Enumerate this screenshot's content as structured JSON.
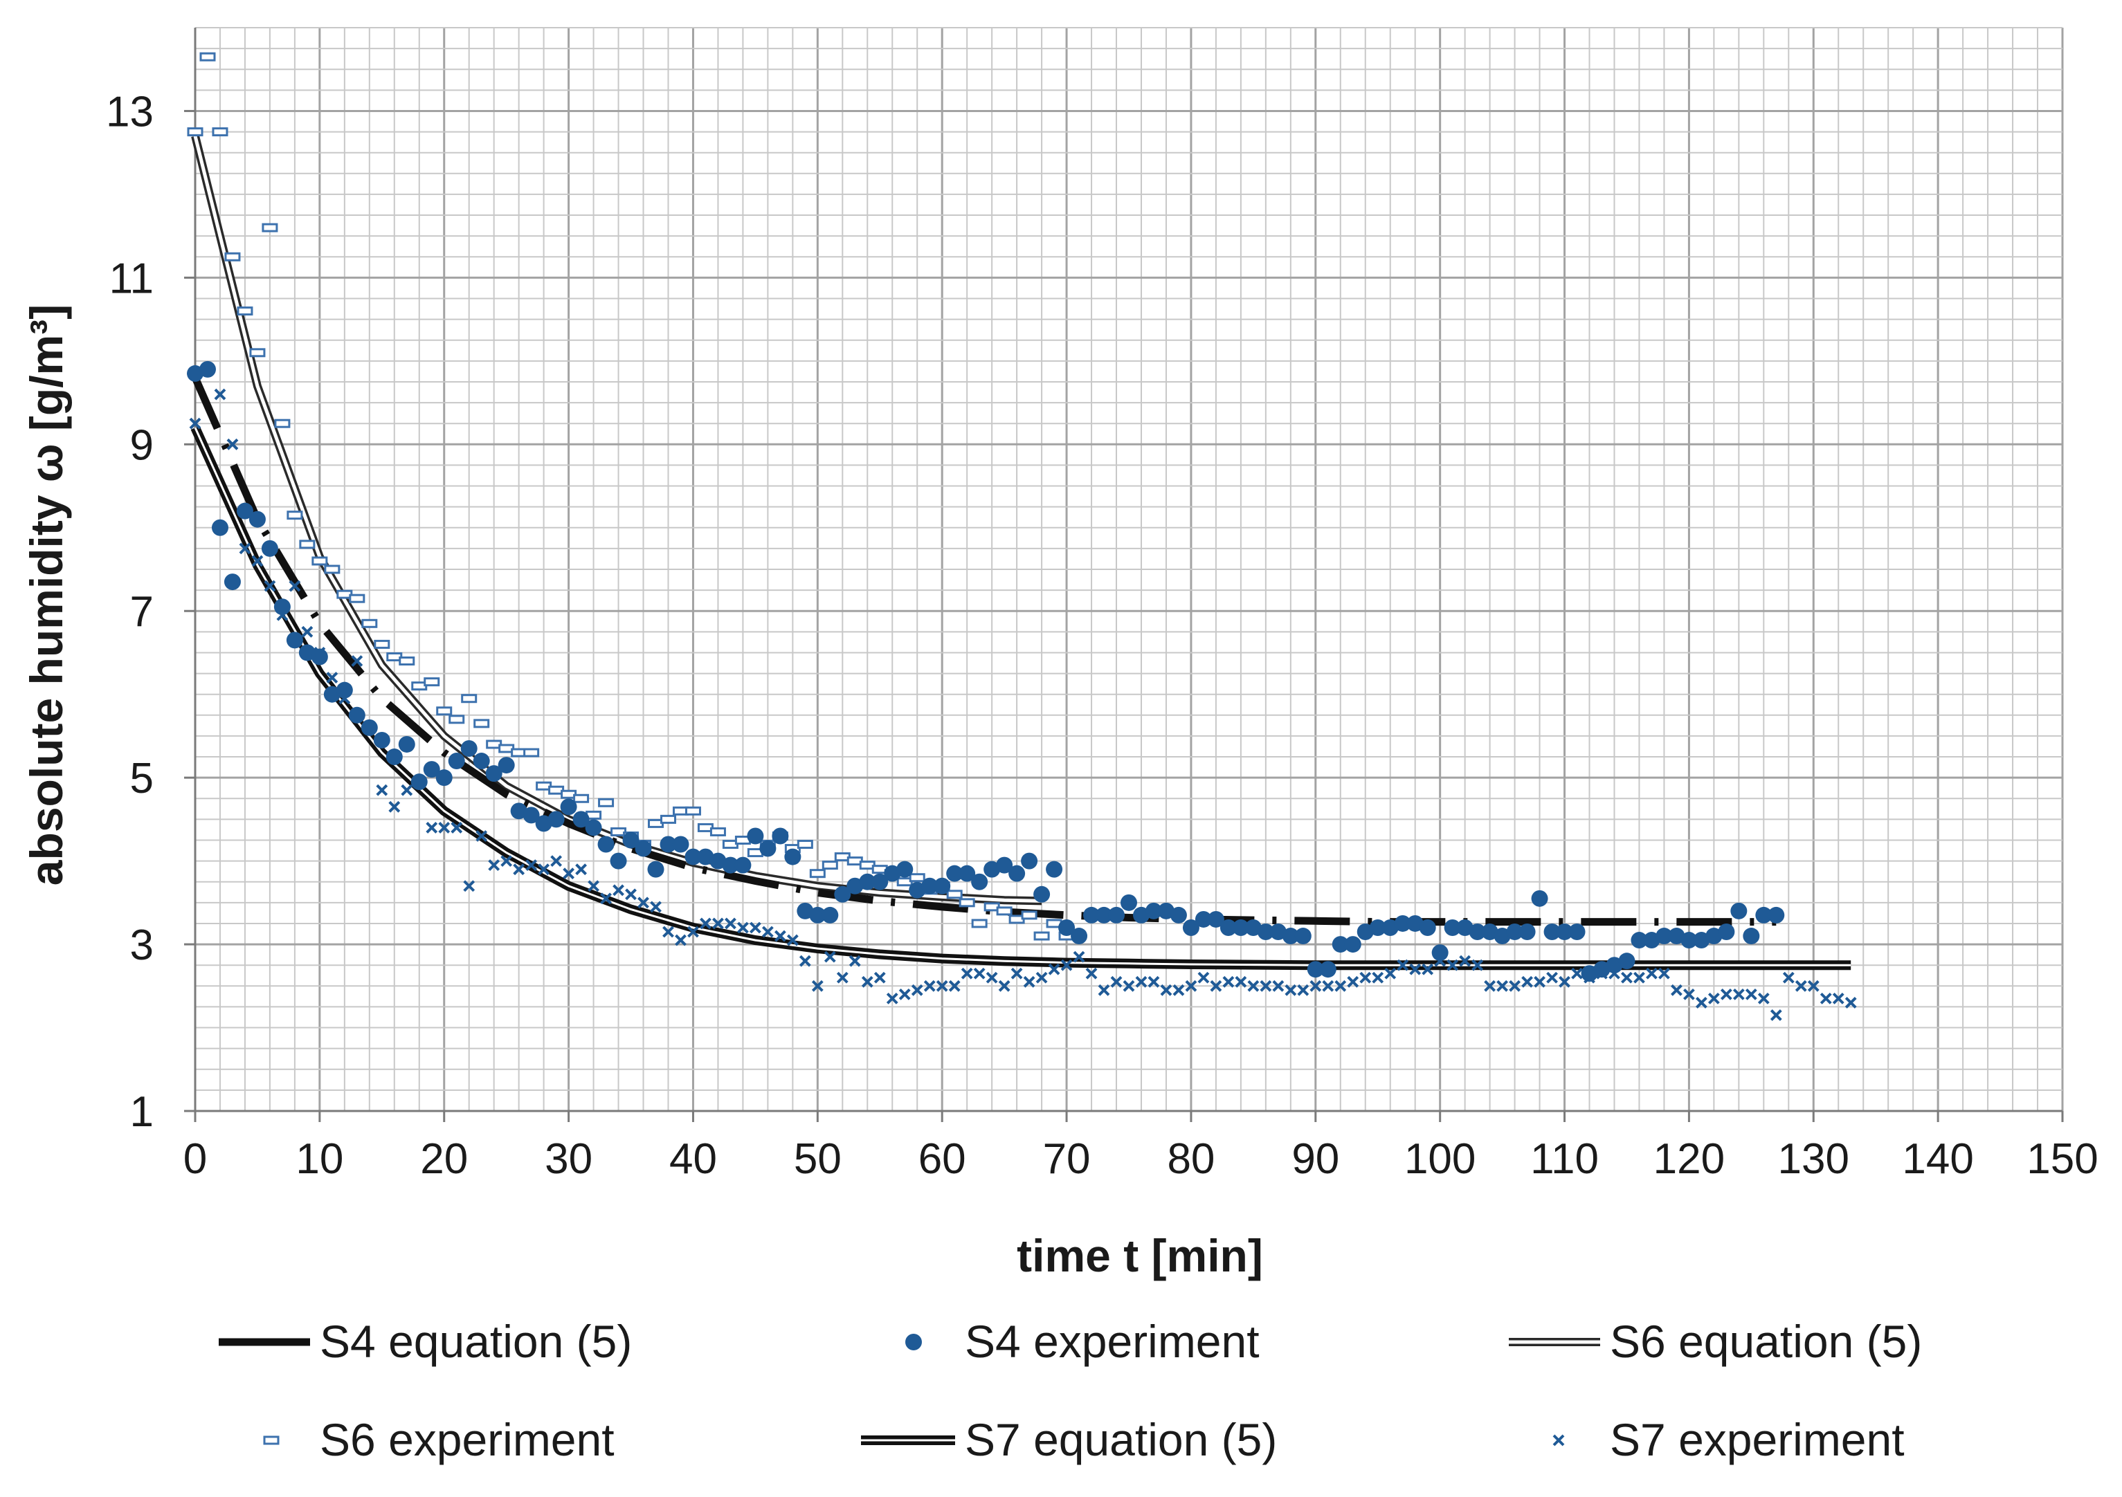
{
  "chart_data": {
    "type": "scatter",
    "xlabel": "time t [min]",
    "ylabel": "absolute humidity ω [g/m³]",
    "xlim": [
      0,
      150
    ],
    "ylim": [
      1,
      14
    ],
    "xticks": [
      0,
      10,
      20,
      30,
      40,
      50,
      60,
      70,
      80,
      90,
      100,
      110,
      120,
      130,
      140,
      150
    ],
    "yticks": [
      1,
      3,
      5,
      7,
      9,
      11,
      13
    ],
    "grid": true,
    "legend_position": "bottom",
    "series": [
      {
        "name": "S4 equation (5)",
        "kind": "line",
        "style": "dash-dot",
        "color": "#111111",
        "x": [
          0,
          5,
          10,
          15,
          20,
          25,
          30,
          35,
          40,
          45,
          50,
          55,
          60,
          65,
          70,
          75,
          80,
          85,
          90,
          95,
          100,
          105,
          110,
          115,
          120,
          125,
          127
        ],
        "y": [
          9.8,
          8.1,
          6.85,
          5.95,
          5.3,
          4.8,
          4.45,
          4.15,
          3.92,
          3.76,
          3.62,
          3.52,
          3.45,
          3.39,
          3.35,
          3.32,
          3.3,
          3.29,
          3.28,
          3.27,
          3.27,
          3.27,
          3.27,
          3.27,
          3.27,
          3.27,
          3.27
        ]
      },
      {
        "name": "S4 experiment",
        "kind": "scatter",
        "marker": "circle",
        "color": "#1f5a96",
        "x": [
          0,
          1,
          2,
          3,
          4,
          5,
          6,
          7,
          8,
          9,
          10,
          11,
          12,
          13,
          14,
          15,
          16,
          17,
          18,
          19,
          20,
          21,
          22,
          23,
          24,
          25,
          26,
          27,
          28,
          29,
          30,
          31,
          32,
          33,
          34,
          35,
          36,
          37,
          38,
          39,
          40,
          41,
          42,
          43,
          44,
          45,
          46,
          47,
          48,
          49,
          50,
          51,
          52,
          53,
          54,
          55,
          56,
          57,
          58,
          59,
          60,
          61,
          62,
          63,
          64,
          65,
          66,
          67,
          68,
          69,
          70,
          71,
          72,
          73,
          74,
          75,
          76,
          77,
          78,
          79,
          80,
          81,
          82,
          83,
          84,
          85,
          86,
          87,
          88,
          89,
          90,
          91,
          92,
          93,
          94,
          95,
          96,
          97,
          98,
          99,
          100,
          101,
          102,
          103,
          104,
          105,
          106,
          107,
          108,
          109,
          110,
          111,
          112,
          113,
          114,
          115,
          116,
          117,
          118,
          119,
          120,
          121,
          122,
          123,
          124,
          125,
          126,
          127
        ],
        "y": [
          9.85,
          9.9,
          8.0,
          7.35,
          8.2,
          8.1,
          7.75,
          7.05,
          6.65,
          6.5,
          6.45,
          6.0,
          6.05,
          5.75,
          5.6,
          5.45,
          5.25,
          5.4,
          4.95,
          5.1,
          5.0,
          5.2,
          5.35,
          5.2,
          5.05,
          5.15,
          4.6,
          4.55,
          4.45,
          4.5,
          4.65,
          4.5,
          4.4,
          4.2,
          4.0,
          4.25,
          4.15,
          3.9,
          4.2,
          4.2,
          4.05,
          4.05,
          4.0,
          3.95,
          3.95,
          4.3,
          4.15,
          4.3,
          4.05,
          3.4,
          3.35,
          3.35,
          3.6,
          3.7,
          3.75,
          3.75,
          3.85,
          3.9,
          3.65,
          3.7,
          3.7,
          3.85,
          3.85,
          3.75,
          3.9,
          3.95,
          3.85,
          4.0,
          3.6,
          3.9,
          3.2,
          3.1,
          3.35,
          3.35,
          3.35,
          3.5,
          3.35,
          3.4,
          3.4,
          3.35,
          3.2,
          3.3,
          3.3,
          3.2,
          3.2,
          3.2,
          3.15,
          3.15,
          3.1,
          3.1,
          2.7,
          2.7,
          3.0,
          3.0,
          3.15,
          3.2,
          3.2,
          3.25,
          3.25,
          3.2,
          2.9,
          3.2,
          3.2,
          3.15,
          3.15,
          3.1,
          3.15,
          3.15,
          3.55,
          3.15,
          3.15,
          3.15,
          2.65,
          2.7,
          2.75,
          2.8,
          3.05,
          3.05,
          3.1,
          3.1,
          3.05,
          3.05,
          3.1,
          3.15,
          3.4,
          3.1,
          3.35,
          3.35
        ]
      },
      {
        "name": "S6 equation (5)",
        "kind": "line",
        "style": "double",
        "color": "#111111",
        "x": [
          0,
          5,
          10,
          15,
          20,
          25,
          30,
          35,
          40,
          45,
          50,
          55,
          60,
          65,
          68
        ],
        "y": [
          12.7,
          9.7,
          7.65,
          6.35,
          5.5,
          4.9,
          4.5,
          4.2,
          3.98,
          3.82,
          3.7,
          3.62,
          3.57,
          3.53,
          3.52
        ]
      },
      {
        "name": "S6 experiment",
        "kind": "scatter",
        "marker": "dash",
        "color": "#3d72ae",
        "x": [
          0,
          1,
          2,
          3,
          4,
          5,
          6,
          7,
          8,
          9,
          10,
          11,
          12,
          13,
          14,
          15,
          16,
          17,
          18,
          19,
          20,
          21,
          22,
          23,
          24,
          25,
          26,
          27,
          28,
          29,
          30,
          31,
          32,
          33,
          34,
          35,
          36,
          37,
          38,
          39,
          40,
          41,
          42,
          43,
          44,
          45,
          46,
          47,
          48,
          49,
          50,
          51,
          52,
          53,
          54,
          55,
          56,
          57,
          58,
          59,
          60,
          61,
          62,
          63,
          64,
          65,
          66,
          67,
          68,
          69,
          70
        ],
        "y": [
          12.75,
          13.65,
          12.75,
          11.25,
          10.6,
          10.1,
          11.6,
          9.25,
          8.15,
          7.8,
          7.6,
          7.5,
          7.2,
          7.15,
          6.85,
          6.6,
          6.45,
          6.4,
          6.1,
          6.15,
          5.8,
          5.7,
          5.95,
          5.65,
          5.4,
          5.35,
          5.3,
          5.3,
          4.9,
          4.85,
          4.8,
          4.75,
          4.55,
          4.7,
          4.35,
          4.3,
          4.2,
          4.45,
          4.5,
          4.6,
          4.6,
          4.4,
          4.35,
          4.2,
          4.25,
          4.1,
          4.2,
          4.3,
          4.15,
          4.2,
          3.85,
          3.95,
          4.05,
          4.0,
          3.95,
          3.9,
          3.85,
          3.75,
          3.8,
          3.65,
          3.7,
          3.6,
          3.5,
          3.25,
          3.45,
          3.4,
          3.3,
          3.35,
          3.1,
          3.25,
          3.1
        ]
      },
      {
        "name": "S7 equation (5)",
        "kind": "line",
        "style": "double-bold",
        "color": "#111111",
        "x": [
          0,
          5,
          10,
          15,
          20,
          25,
          30,
          35,
          40,
          45,
          50,
          55,
          60,
          65,
          70,
          75,
          80,
          85,
          90,
          95,
          100,
          105,
          110,
          115,
          120,
          125,
          130,
          133
        ],
        "y": [
          9.2,
          7.55,
          6.25,
          5.3,
          4.6,
          4.1,
          3.7,
          3.42,
          3.2,
          3.05,
          2.95,
          2.88,
          2.83,
          2.8,
          2.78,
          2.77,
          2.76,
          2.755,
          2.75,
          2.75,
          2.75,
          2.75,
          2.75,
          2.75,
          2.75,
          2.75,
          2.75,
          2.75
        ]
      },
      {
        "name": "S7 experiment",
        "kind": "scatter",
        "marker": "x",
        "color": "#1f5a96",
        "x": [
          0,
          2,
          3,
          4,
          5,
          6,
          7,
          8,
          9,
          10,
          11,
          12,
          13,
          14,
          15,
          16,
          17,
          18,
          19,
          20,
          21,
          22,
          23,
          24,
          25,
          26,
          27,
          28,
          29,
          30,
          31,
          32,
          33,
          34,
          35,
          36,
          37,
          38,
          39,
          40,
          41,
          42,
          43,
          44,
          45,
          46,
          47,
          48,
          49,
          50,
          51,
          52,
          53,
          54,
          55,
          56,
          57,
          58,
          59,
          60,
          61,
          62,
          63,
          64,
          65,
          66,
          67,
          68,
          69,
          70,
          71,
          72,
          73,
          74,
          75,
          76,
          77,
          78,
          79,
          80,
          81,
          82,
          83,
          84,
          85,
          86,
          87,
          88,
          89,
          90,
          91,
          92,
          93,
          94,
          95,
          96,
          97,
          98,
          99,
          100,
          101,
          102,
          103,
          104,
          105,
          106,
          107,
          108,
          109,
          110,
          111,
          112,
          113,
          114,
          115,
          116,
          117,
          118,
          119,
          120,
          121,
          122,
          123,
          124,
          125,
          126,
          127,
          128,
          129,
          130,
          131,
          132,
          133
        ],
        "y": [
          9.25,
          9.6,
          9.0,
          7.75,
          7.6,
          7.3,
          6.95,
          7.3,
          6.75,
          6.5,
          6.2,
          5.95,
          6.4,
          5.6,
          4.85,
          4.65,
          4.85,
          4.95,
          4.4,
          4.4,
          4.4,
          3.7,
          4.3,
          3.95,
          4.0,
          3.9,
          3.95,
          3.9,
          4.0,
          3.85,
          3.9,
          3.7,
          3.55,
          3.65,
          3.6,
          3.5,
          3.45,
          3.15,
          3.05,
          3.15,
          3.25,
          3.25,
          3.25,
          3.2,
          3.2,
          3.15,
          3.1,
          3.05,
          2.8,
          2.5,
          2.85,
          2.6,
          2.8,
          2.55,
          2.6,
          2.35,
          2.4,
          2.45,
          2.5,
          2.5,
          2.5,
          2.65,
          2.65,
          2.6,
          2.5,
          2.65,
          2.55,
          2.6,
          2.7,
          2.75,
          2.85,
          2.65,
          2.45,
          2.55,
          2.5,
          2.55,
          2.55,
          2.45,
          2.45,
          2.5,
          2.6,
          2.5,
          2.55,
          2.55,
          2.5,
          2.5,
          2.5,
          2.45,
          2.45,
          2.5,
          2.5,
          2.5,
          2.55,
          2.6,
          2.6,
          2.65,
          2.75,
          2.7,
          2.7,
          2.8,
          2.75,
          2.8,
          2.75,
          2.5,
          2.5,
          2.5,
          2.55,
          2.55,
          2.6,
          2.55,
          2.65,
          2.6,
          2.65,
          2.65,
          2.6,
          2.6,
          2.65,
          2.65,
          2.45,
          2.4,
          2.3,
          2.35,
          2.4,
          2.4,
          2.4,
          2.35,
          2.15,
          2.6,
          2.5,
          2.5,
          2.35,
          2.35,
          2.3
        ]
      }
    ]
  }
}
